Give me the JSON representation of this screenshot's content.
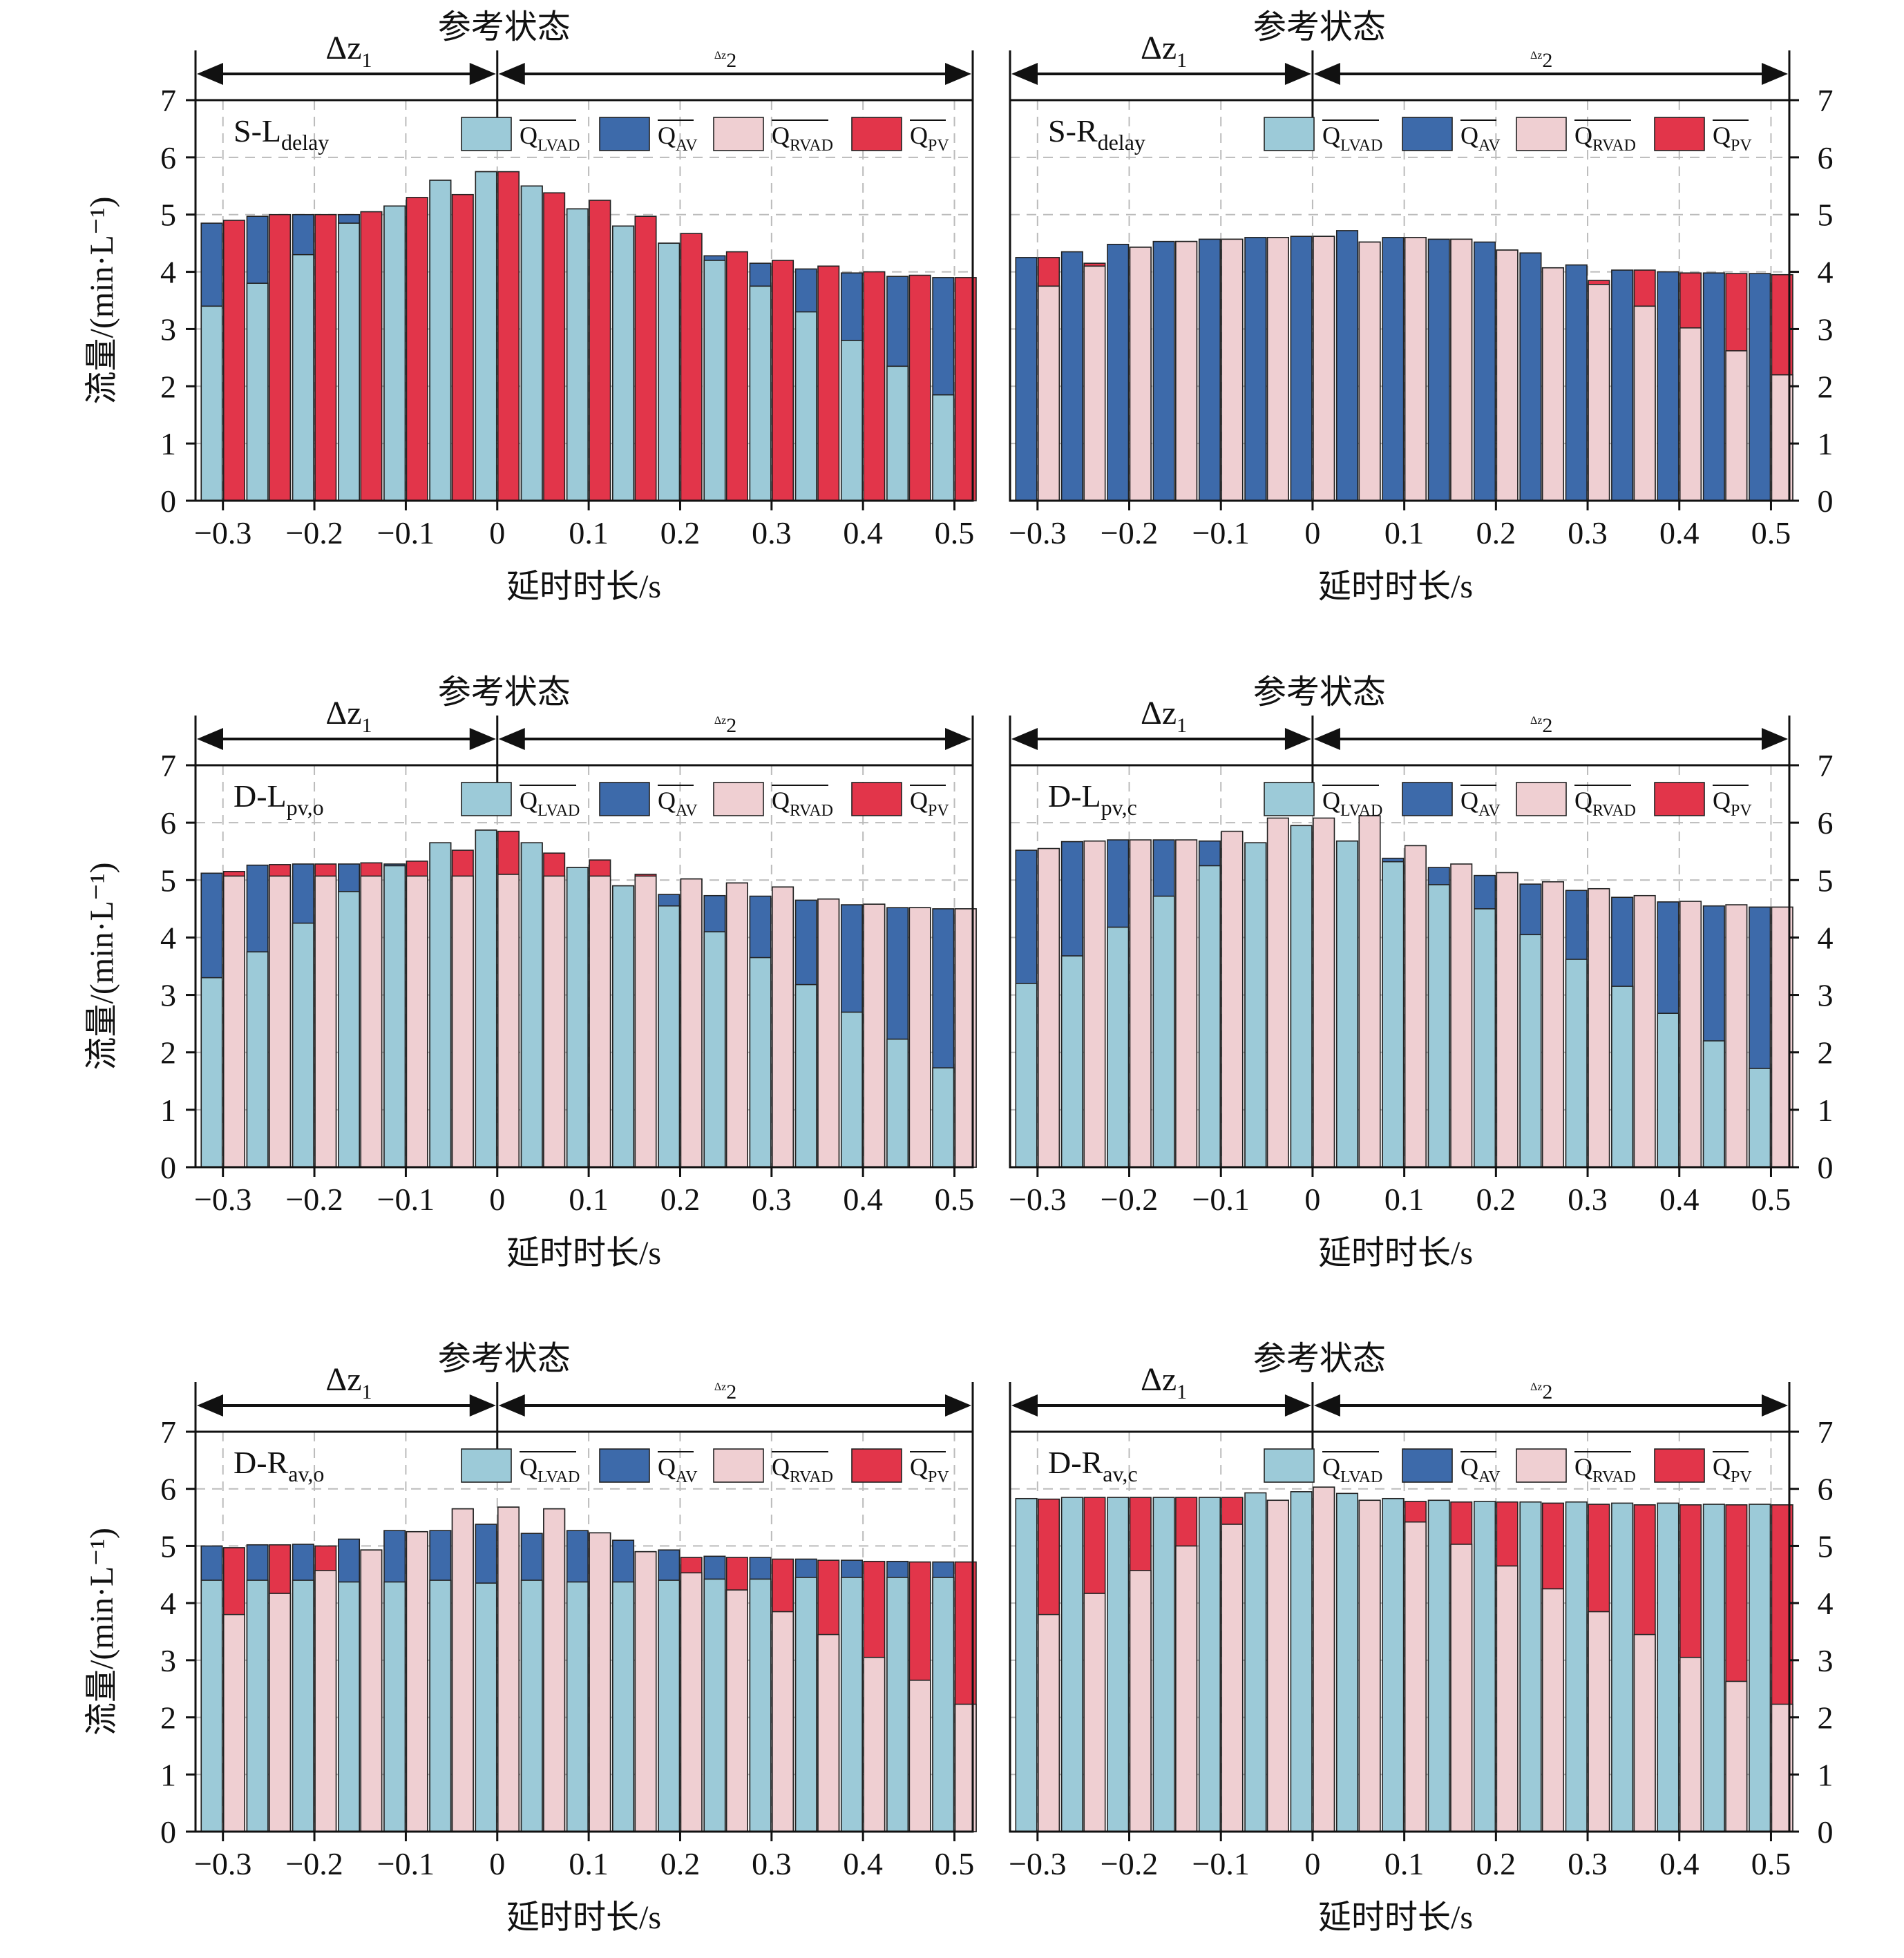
{
  "figure": {
    "ref_label": "参考状态",
    "dz1_label": "Δz₁",
    "dz2_label": "Δz₂",
    "xlabel": "延时时长/s",
    "ylabel": "流量/(min·L⁻¹)",
    "colors": {
      "Q_LVAD": "#9ccad8",
      "Q_AV": "#3d6aaa",
      "Q_RVAD": "#efcfd2",
      "Q_PV": "#e2354a"
    }
  },
  "chart_data": [
    {
      "type": "bar",
      "title": "S-L_delay",
      "panel_label": "S-L",
      "panel_sub": "delay",
      "x_tick_labels": [
        "−0.3",
        "−0.2",
        "−0.1",
        "0",
        "0.1",
        "0.2",
        "0.3",
        "0.4",
        "0.5"
      ],
      "x": [
        -0.3,
        -0.25,
        -0.2,
        -0.15,
        -0.1,
        -0.05,
        0,
        0.05,
        0.1,
        0.15,
        0.2,
        0.25,
        0.3,
        0.35,
        0.4,
        0.45,
        0.5
      ],
      "ylim": [
        0,
        7
      ],
      "y_ticks": [
        0,
        1,
        2,
        3,
        4,
        5,
        6,
        7
      ],
      "legend_placement": "top-right",
      "grid": true,
      "series": [
        {
          "name": "Q_LVAD",
          "values": [
            3.4,
            3.8,
            4.3,
            4.85,
            5.15,
            5.6,
            5.75,
            5.5,
            5.1,
            4.8,
            4.5,
            4.2,
            3.75,
            3.3,
            2.8,
            2.35,
            1.85
          ]
        },
        {
          "name": "Q_AV",
          "values": [
            4.85,
            4.97,
            5.0,
            5.0,
            5.15,
            5.6,
            5.75,
            5.5,
            5.1,
            4.8,
            4.5,
            4.28,
            4.15,
            4.05,
            3.98,
            3.92,
            3.9
          ]
        },
        {
          "name": "Q_RVAD",
          "values": [
            0,
            0,
            0,
            0,
            0,
            0,
            0,
            0,
            0,
            0,
            0,
            0,
            0,
            0,
            0,
            0,
            0
          ]
        },
        {
          "name": "Q_PV",
          "values": [
            4.9,
            5.0,
            5.0,
            5.05,
            5.3,
            5.35,
            5.75,
            5.38,
            5.25,
            4.97,
            4.67,
            4.35,
            4.2,
            4.1,
            4.0,
            3.94,
            3.9
          ]
        }
      ]
    },
    {
      "type": "bar",
      "title": "S-R_delay",
      "panel_label": "S-R",
      "panel_sub": "delay",
      "x_tick_labels": [
        "−0.3",
        "−0.2",
        "−0.1",
        "0",
        "0.1",
        "0.2",
        "0.3",
        "0.4",
        "0.5"
      ],
      "x": [
        -0.3,
        -0.25,
        -0.2,
        -0.15,
        -0.1,
        -0.05,
        0,
        0.05,
        0.1,
        0.15,
        0.2,
        0.25,
        0.3,
        0.35,
        0.4,
        0.45,
        0.5
      ],
      "ylim": [
        0,
        7
      ],
      "y_ticks": [
        0,
        1,
        2,
        3,
        4,
        5,
        6,
        7
      ],
      "legend_placement": "top-right",
      "grid": true,
      "series": [
        {
          "name": "Q_LVAD",
          "values": [
            0,
            0,
            0,
            0,
            0,
            0,
            0,
            0,
            0,
            0,
            0,
            0,
            0,
            0,
            0,
            0,
            0
          ]
        },
        {
          "name": "Q_AV",
          "values": [
            4.25,
            4.35,
            4.48,
            4.53,
            4.57,
            4.6,
            4.62,
            4.72,
            4.6,
            4.57,
            4.52,
            4.33,
            4.12,
            4.03,
            4.0,
            3.98,
            3.97
          ]
        },
        {
          "name": "Q_RVAD",
          "values": [
            3.75,
            4.1,
            4.43,
            4.53,
            4.57,
            4.6,
            4.62,
            4.52,
            4.6,
            4.57,
            4.38,
            4.07,
            3.78,
            3.4,
            3.02,
            2.62,
            2.2
          ]
        },
        {
          "name": "Q_PV",
          "values": [
            4.25,
            4.15,
            4.43,
            4.53,
            4.57,
            4.6,
            4.62,
            4.52,
            4.6,
            4.57,
            4.38,
            4.07,
            3.85,
            4.03,
            3.98,
            3.97,
            3.95
          ]
        }
      ]
    },
    {
      "type": "bar",
      "title": "D-L_pv,o",
      "panel_label": "D-L",
      "panel_sub": "pv,o",
      "x_tick_labels": [
        "−0.3",
        "−0.2",
        "−0.1",
        "0",
        "0.1",
        "0.2",
        "0.3",
        "0.4",
        "0.5"
      ],
      "x": [
        -0.3,
        -0.25,
        -0.2,
        -0.15,
        -0.1,
        -0.05,
        0,
        0.05,
        0.1,
        0.15,
        0.2,
        0.25,
        0.3,
        0.35,
        0.4,
        0.45,
        0.5
      ],
      "ylim": [
        0,
        7
      ],
      "y_ticks": [
        0,
        1,
        2,
        3,
        4,
        5,
        6,
        7
      ],
      "legend_placement": "top-right",
      "grid": true,
      "series": [
        {
          "name": "Q_LVAD",
          "values": [
            3.3,
            3.75,
            4.25,
            4.8,
            5.25,
            5.65,
            5.87,
            5.65,
            5.22,
            4.9,
            4.55,
            4.1,
            3.65,
            3.18,
            2.7,
            2.23,
            1.73
          ]
        },
        {
          "name": "Q_AV",
          "values": [
            5.12,
            5.26,
            5.28,
            5.28,
            5.28,
            5.65,
            5.87,
            5.65,
            5.22,
            4.9,
            4.75,
            4.73,
            4.72,
            4.65,
            4.57,
            4.52,
            4.5
          ]
        },
        {
          "name": "Q_RVAD",
          "values": [
            5.07,
            5.07,
            5.07,
            5.07,
            5.07,
            5.07,
            5.1,
            5.07,
            5.07,
            5.07,
            5.02,
            4.95,
            4.88,
            4.67,
            4.58,
            4.52,
            4.5
          ]
        },
        {
          "name": "Q_PV",
          "values": [
            5.15,
            5.27,
            5.28,
            5.3,
            5.33,
            5.52,
            5.85,
            5.47,
            5.35,
            5.1,
            5.02,
            4.95,
            4.88,
            4.67,
            4.58,
            4.52,
            4.5
          ]
        }
      ]
    },
    {
      "type": "bar",
      "title": "D-L_pv,c",
      "panel_label": "D-L",
      "panel_sub": "pv,c",
      "x_tick_labels": [
        "−0.3",
        "−0.2",
        "−0.1",
        "0",
        "0.1",
        "0.2",
        "0.3",
        "0.4",
        "0.5"
      ],
      "x": [
        -0.3,
        -0.25,
        -0.2,
        -0.15,
        -0.1,
        -0.05,
        0,
        0.05,
        0.1,
        0.15,
        0.2,
        0.25,
        0.3,
        0.35,
        0.4,
        0.45,
        0.5
      ],
      "ylim": [
        0,
        7
      ],
      "y_ticks": [
        0,
        1,
        2,
        3,
        4,
        5,
        6,
        7
      ],
      "legend_placement": "top-right",
      "grid": true,
      "series": [
        {
          "name": "Q_LVAD",
          "values": [
            3.2,
            3.68,
            4.18,
            4.72,
            5.25,
            5.65,
            5.95,
            5.68,
            5.32,
            4.92,
            4.5,
            4.05,
            3.62,
            3.15,
            2.68,
            2.2,
            1.72
          ]
        },
        {
          "name": "Q_AV",
          "values": [
            5.52,
            5.67,
            5.7,
            5.7,
            5.68,
            5.65,
            5.95,
            5.68,
            5.38,
            5.22,
            5.08,
            4.93,
            4.82,
            4.7,
            4.62,
            4.55,
            4.53
          ]
        },
        {
          "name": "Q_RVAD",
          "values": [
            5.55,
            5.68,
            5.7,
            5.7,
            5.85,
            6.08,
            6.08,
            6.12,
            5.6,
            5.28,
            5.13,
            4.97,
            4.85,
            4.73,
            4.63,
            4.57,
            4.53
          ]
        },
        {
          "name": "Q_PV",
          "values": [
            0,
            0,
            0,
            0,
            0,
            0,
            0,
            0,
            0,
            0,
            0,
            0,
            0,
            0,
            0,
            0,
            0
          ]
        }
      ]
    },
    {
      "type": "bar",
      "title": "D-R_av,o",
      "panel_label": "D-R",
      "panel_sub": "av,o",
      "x_tick_labels": [
        "−0.3",
        "−0.2",
        "−0.1",
        "0",
        "0.1",
        "0.2",
        "0.3",
        "0.4",
        "0.5"
      ],
      "x": [
        -0.3,
        -0.25,
        -0.2,
        -0.15,
        -0.1,
        -0.05,
        0,
        0.05,
        0.1,
        0.15,
        0.2,
        0.25,
        0.3,
        0.35,
        0.4,
        0.45,
        0.5
      ],
      "ylim": [
        0,
        7
      ],
      "y_ticks": [
        0,
        1,
        2,
        3,
        4,
        5,
        6,
        7
      ],
      "legend_placement": "top-right",
      "grid": true,
      "series": [
        {
          "name": "Q_LVAD",
          "values": [
            4.4,
            4.4,
            4.4,
            4.37,
            4.37,
            4.4,
            4.35,
            4.4,
            4.37,
            4.37,
            4.4,
            4.42,
            4.42,
            4.45,
            4.45,
            4.45,
            4.45
          ]
        },
        {
          "name": "Q_AV",
          "values": [
            5.0,
            5.02,
            5.03,
            5.12,
            5.27,
            5.27,
            5.38,
            5.22,
            5.27,
            5.1,
            4.93,
            4.82,
            4.8,
            4.77,
            4.75,
            4.73,
            4.72
          ]
        },
        {
          "name": "Q_RVAD",
          "values": [
            3.8,
            4.17,
            4.57,
            4.93,
            5.25,
            5.65,
            5.68,
            5.65,
            5.23,
            4.9,
            4.53,
            4.23,
            3.85,
            3.45,
            3.05,
            2.65,
            2.23
          ]
        },
        {
          "name": "Q_PV",
          "values": [
            4.97,
            5.02,
            5.0,
            4.93,
            5.25,
            5.65,
            5.68,
            5.65,
            5.23,
            4.9,
            4.8,
            4.8,
            4.77,
            4.75,
            4.73,
            4.72,
            4.72
          ]
        }
      ]
    },
    {
      "type": "bar",
      "title": "D-R_av,c",
      "panel_label": "D-R",
      "panel_sub": "av,c",
      "x_tick_labels": [
        "−0.3",
        "−0.2",
        "−0.1",
        "0",
        "0.1",
        "0.2",
        "0.3",
        "0.4",
        "0.5"
      ],
      "x": [
        -0.3,
        -0.25,
        -0.2,
        -0.15,
        -0.1,
        -0.05,
        0,
        0.05,
        0.1,
        0.15,
        0.2,
        0.25,
        0.3,
        0.35,
        0.4,
        0.45,
        0.5
      ],
      "ylim": [
        0,
        7
      ],
      "y_ticks": [
        0,
        1,
        2,
        3,
        4,
        5,
        6,
        7
      ],
      "legend_placement": "top-right",
      "grid": true,
      "series": [
        {
          "name": "Q_LVAD",
          "values": [
            5.83,
            5.85,
            5.85,
            5.85,
            5.85,
            5.93,
            5.95,
            5.92,
            5.83,
            5.8,
            5.78,
            5.77,
            5.77,
            5.75,
            5.75,
            5.73,
            5.73
          ]
        },
        {
          "name": "Q_AV",
          "values": [
            0,
            0,
            0,
            0,
            0,
            0,
            0,
            0,
            0,
            0,
            0,
            0,
            0,
            0,
            0,
            0,
            0
          ]
        },
        {
          "name": "Q_RVAD",
          "values": [
            3.8,
            4.17,
            4.57,
            5.0,
            5.38,
            5.8,
            6.03,
            5.8,
            5.42,
            5.03,
            4.65,
            4.25,
            3.85,
            3.45,
            3.05,
            2.63,
            2.23
          ]
        },
        {
          "name": "Q_PV",
          "values": [
            5.82,
            5.85,
            5.85,
            5.85,
            5.85,
            5.8,
            6.03,
            5.8,
            5.78,
            5.77,
            5.77,
            5.75,
            5.73,
            5.72,
            5.72,
            5.72,
            5.72
          ]
        }
      ]
    }
  ]
}
